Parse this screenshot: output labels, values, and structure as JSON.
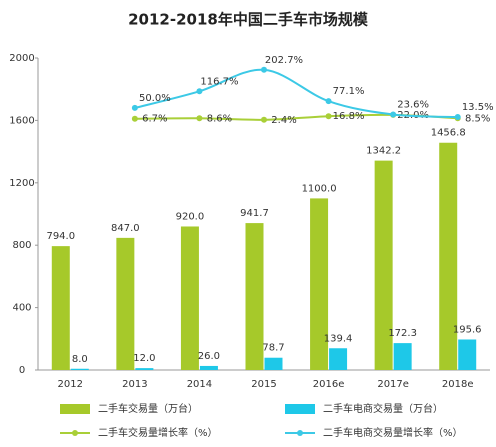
{
  "chart_data": {
    "type": "bar",
    "title": "2012-2018年中国二手车市场规模",
    "categories": [
      "2012",
      "2013",
      "2014",
      "2015",
      "2016e",
      "2017e",
      "2018e"
    ],
    "ylim": [
      0,
      2000
    ],
    "yticks": [
      0,
      400,
      800,
      1200,
      1600,
      2000
    ],
    "y2lim": [
      -1000,
      250
    ],
    "series": [
      {
        "name": "二手车交易量（万台）",
        "type": "bar",
        "color": "#a6c92a",
        "values": [
          794.0,
          847.0,
          920.0,
          941.7,
          1100.0,
          1342.2,
          1456.8
        ],
        "value_labels": [
          "794.0",
          "847.0",
          "920.0",
          "941.7",
          "1100.0",
          "1342.2",
          "1456.8"
        ]
      },
      {
        "name": "二手车电商交易量（万台）",
        "type": "bar",
        "color": "#1ec8e8",
        "values": [
          8.0,
          12.0,
          26.0,
          78.7,
          139.4,
          172.3,
          195.6
        ],
        "value_labels": [
          "8.0",
          "12.0",
          "26.0",
          "78.7",
          "139.4",
          "172.3",
          "195.6"
        ]
      },
      {
        "name": "二手车交易量增长率（%）",
        "type": "line",
        "axis": "y2",
        "color": "#a9cf38",
        "values": [
          null,
          6.7,
          8.6,
          2.4,
          16.8,
          22.0,
          8.5
        ],
        "value_labels": [
          null,
          "6.7%",
          "8.6%",
          "2.4%",
          "16.8%",
          "22.0%",
          "8.5%"
        ]
      },
      {
        "name": "二手车电商交易量增长率（%）",
        "type": "line",
        "axis": "y2",
        "color": "#3cc9e6",
        "values": [
          null,
          50.0,
          116.7,
          202.7,
          77.1,
          23.6,
          13.5
        ],
        "value_labels": [
          null,
          "50.0%",
          "116.7%",
          "202.7%",
          "77.1%",
          "23.6%",
          "13.5%"
        ]
      }
    ]
  }
}
